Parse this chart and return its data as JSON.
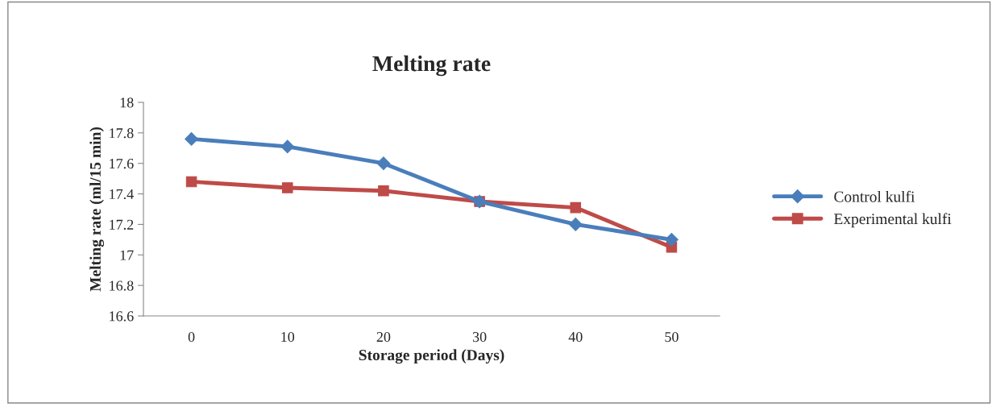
{
  "chart_data": {
    "type": "line",
    "title": "Melting rate",
    "xlabel": "Storage period (Days)",
    "ylabel": "Melting rate (ml/15 min)",
    "categories": [
      "0",
      "10",
      "20",
      "30",
      "40",
      "50"
    ],
    "series": [
      {
        "name": "Control kulfi",
        "color": "#4a7ebb",
        "marker": "diamond",
        "values": [
          17.76,
          17.71,
          17.6,
          17.35,
          17.2,
          17.1
        ]
      },
      {
        "name": "Experimental kulfi",
        "color": "#be4b48",
        "marker": "square",
        "values": [
          17.48,
          17.44,
          17.42,
          17.35,
          17.31,
          17.05
        ]
      }
    ],
    "ylim": [
      16.6,
      18
    ],
    "yticks": [
      16.6,
      16.8,
      17,
      17.2,
      17.4,
      17.6,
      17.8,
      18
    ],
    "grid": false,
    "legend": "right",
    "line_style": "solid"
  }
}
